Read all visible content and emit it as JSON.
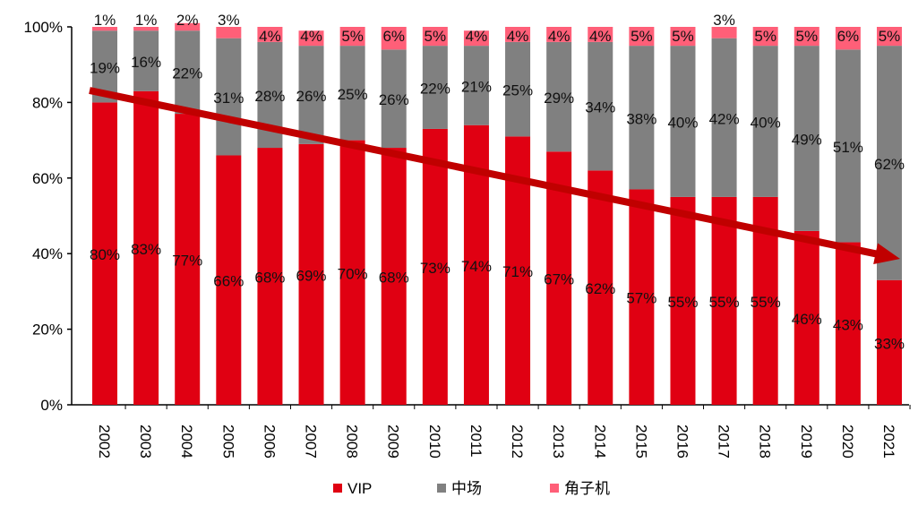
{
  "chart_data": {
    "type": "bar",
    "stacked": true,
    "categories": [
      "2002",
      "2003",
      "2004",
      "2005",
      "2006",
      "2007",
      "2008",
      "2009",
      "2010",
      "2011",
      "2012",
      "2013",
      "2014",
      "2015",
      "2016",
      "2017",
      "2018",
      "2019",
      "2020",
      "2021"
    ],
    "series": [
      {
        "name": "VIP",
        "color": "#E00012",
        "values": [
          80,
          83,
          77,
          66,
          68,
          69,
          70,
          68,
          73,
          74,
          71,
          67,
          62,
          57,
          55,
          55,
          55,
          46,
          43,
          33
        ]
      },
      {
        "name": "中场",
        "color": "#808080",
        "values": [
          19,
          16,
          22,
          31,
          28,
          26,
          25,
          26,
          22,
          21,
          25,
          29,
          34,
          38,
          40,
          42,
          40,
          49,
          51,
          62
        ]
      },
      {
        "name": "角子机",
        "color": "#FF5F78",
        "values": [
          1,
          1,
          2,
          3,
          4,
          4,
          5,
          6,
          5,
          4,
          4,
          4,
          4,
          5,
          5,
          3,
          5,
          5,
          6,
          5
        ]
      }
    ],
    "yticks": [
      "0%",
      "20%",
      "40%",
      "60%",
      "80%",
      "100%"
    ],
    "ylim": [
      0,
      100
    ],
    "grid": false,
    "legend": "bottom",
    "trend_arrow": {
      "color": "#C00000",
      "direction": "down"
    }
  }
}
